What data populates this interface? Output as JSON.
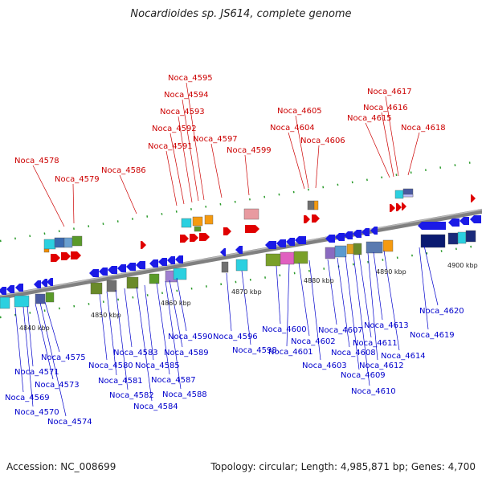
{
  "title": "Nocardioides sp. JS614, complete genome",
  "footer": {
    "accession": "Accession: NC_008699",
    "summary": "Topology: circular; Length: 4,985,871 bp; Genes: 4,700"
  },
  "colors": {
    "upper_label": "#cc0000",
    "lower_label": "#0000cc",
    "backbone": "#808080"
  },
  "kbp_labels": [
    "4840 kbp",
    "4850 kbp",
    "4860 kbp",
    "4870 kbp",
    "4880 kbp",
    "4890 kbp",
    "4900 kbp"
  ],
  "upper_genes": [
    "Noca_4578",
    "Noca_4579",
    "Noca_4586",
    "Noca_4591",
    "Noca_4592",
    "Noca_4593",
    "Noca_4594",
    "Noca_4595",
    "Noca_4597",
    "Noca_4599",
    "Noca_4604",
    "Noca_4605",
    "Noca_4606",
    "Noca_4615",
    "Noca_4616",
    "Noca_4617",
    "Noca_4618"
  ],
  "lower_genes": [
    "Noca_4569",
    "Noca_4570",
    "Noca_4571",
    "Noca_4573",
    "Noca_4574",
    "Noca_4575",
    "Noca_4580",
    "Noca_4581",
    "Noca_4582",
    "Noca_4583",
    "Noca_4584",
    "Noca_4585",
    "Noca_4587",
    "Noca_4588",
    "Noca_4589",
    "Noca_4590",
    "Noca_4596",
    "Noca_4598",
    "Noca_4600",
    "Noca_4601",
    "Noca_4602",
    "Noca_4603",
    "Noca_4607",
    "Noca_4608",
    "Noca_4609",
    "Noca_4610",
    "Noca_4611",
    "Noca_4612",
    "Noca_4613",
    "Noca_4614",
    "Noca_4619",
    "Noca_4620"
  ]
}
